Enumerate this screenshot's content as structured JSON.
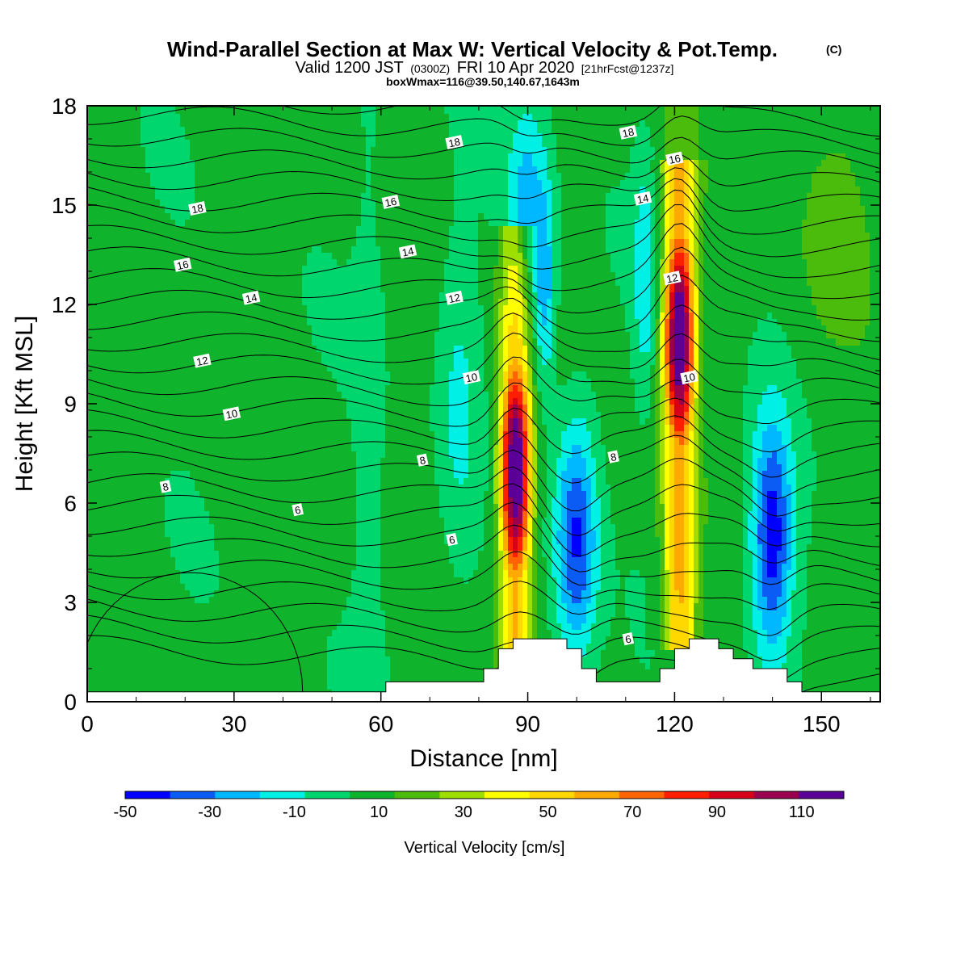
{
  "chart_data": {
    "type": "heatmap",
    "title": "Wind-Parallel Section at Max W: Vertical Velocity & Pot.Temp.",
    "title_mark": "(C)",
    "subtitle_main_a": "Valid 1200 JST",
    "subtitle_utc": "(0300Z)",
    "subtitle_main_b": "FRI 10 Apr 2020",
    "subtitle_fcst": "[21hrFcst@1237z]",
    "subtitle2": "boxWmax=116@39.50,140.67,1643m",
    "xlabel": "Distance [nm]",
    "ylabel": "Height [Kft MSL]",
    "xlim": [
      0,
      162
    ],
    "ylim": [
      0,
      18
    ],
    "x_ticks": [
      "0",
      "30",
      "60",
      "90",
      "120",
      "150"
    ],
    "x_tick_values": [
      0,
      30,
      60,
      90,
      120,
      150
    ],
    "y_ticks": [
      "0",
      "3",
      "6",
      "9",
      "12",
      "15",
      "18"
    ],
    "y_tick_values": [
      0,
      3,
      6,
      9,
      12,
      15,
      18
    ],
    "colorbar": {
      "label": "Vertical Velocity [cm/s]",
      "min": -50,
      "max": 120,
      "step": 10,
      "tick_labels": [
        "-50",
        "-30",
        "-10",
        "10",
        "30",
        "50",
        "70",
        "90",
        "110"
      ],
      "tick_values": [
        -50,
        -30,
        -10,
        10,
        30,
        50,
        70,
        90,
        110
      ],
      "colors": [
        "#0000ff",
        "#0a5cf5",
        "#00b8ff",
        "#00f0e6",
        "#00d66e",
        "#10b42c",
        "#4cbc0c",
        "#9ede00",
        "#ffff00",
        "#ffd800",
        "#ffaa00",
        "#ff6400",
        "#ff1e00",
        "#d80018",
        "#9a0050",
        "#5a0096"
      ]
    },
    "updrafts": [
      {
        "x": 87.5,
        "y_base": 1.0,
        "y_top": 14.5,
        "y_peak": 7.0,
        "peak": 118
      },
      {
        "x": 121.0,
        "y_base": 1.5,
        "y_top": 16.5,
        "y_peak": 11.0,
        "peak": 116
      }
    ],
    "downdrafts": [
      {
        "x": 100.0,
        "y_peak": 5.0,
        "min": -40
      },
      {
        "x": 140.0,
        "y_peak": 5.0,
        "min": -45
      },
      {
        "x": 89.0,
        "y_peak": 15.0,
        "min": -30
      }
    ],
    "terrain_steps": [
      [
        0,
        0.3
      ],
      [
        61,
        0.3
      ],
      [
        61,
        0.6
      ],
      [
        81,
        0.6
      ],
      [
        81,
        1.0
      ],
      [
        84,
        1.0
      ],
      [
        84,
        1.6
      ],
      [
        87,
        1.6
      ],
      [
        87,
        1.9
      ],
      [
        98,
        1.9
      ],
      [
        98,
        1.6
      ],
      [
        101,
        1.6
      ],
      [
        101,
        1.0
      ],
      [
        104,
        1.0
      ],
      [
        104,
        0.6
      ],
      [
        117,
        0.6
      ],
      [
        117,
        1.0
      ],
      [
        120,
        1.0
      ],
      [
        120,
        1.6
      ],
      [
        123,
        1.6
      ],
      [
        123,
        1.9
      ],
      [
        129,
        1.9
      ],
      [
        129,
        1.6
      ],
      [
        132,
        1.6
      ],
      [
        132,
        1.3
      ],
      [
        136,
        1.3
      ],
      [
        136,
        1.0
      ],
      [
        143,
        1.0
      ],
      [
        143,
        0.6
      ],
      [
        146,
        0.6
      ],
      [
        146,
        0.3
      ],
      [
        162,
        0.3
      ]
    ],
    "theta_contour_labels": [
      {
        "text": "18",
        "x": 22.5,
        "y": 14.9
      },
      {
        "text": "16",
        "x": 19.5,
        "y": 13.2
      },
      {
        "text": "14",
        "x": 33.5,
        "y": 12.2
      },
      {
        "text": "12",
        "x": 23.5,
        "y": 10.3
      },
      {
        "text": "10",
        "x": 29.5,
        "y": 8.7
      },
      {
        "text": "8",
        "x": 16.0,
        "y": 6.5
      },
      {
        "text": "6",
        "x": 43.0,
        "y": 5.8
      },
      {
        "text": "18",
        "x": 75.0,
        "y": 16.9
      },
      {
        "text": "16",
        "x": 62.0,
        "y": 15.1
      },
      {
        "text": "14",
        "x": 65.5,
        "y": 13.6
      },
      {
        "text": "12",
        "x": 75.0,
        "y": 12.2
      },
      {
        "text": "10",
        "x": 78.5,
        "y": 9.8
      },
      {
        "text": "8",
        "x": 68.5,
        "y": 7.3
      },
      {
        "text": "6",
        "x": 74.5,
        "y": 4.9
      },
      {
        "text": "18",
        "x": 110.5,
        "y": 17.2
      },
      {
        "text": "16",
        "x": 120.0,
        "y": 16.4
      },
      {
        "text": "14",
        "x": 113.5,
        "y": 15.2
      },
      {
        "text": "12",
        "x": 119.5,
        "y": 12.8
      },
      {
        "text": "10",
        "x": 123.0,
        "y": 9.8
      },
      {
        "text": "8",
        "x": 107.5,
        "y": 7.4
      },
      {
        "text": "6",
        "x": 110.5,
        "y": 1.9
      }
    ]
  }
}
